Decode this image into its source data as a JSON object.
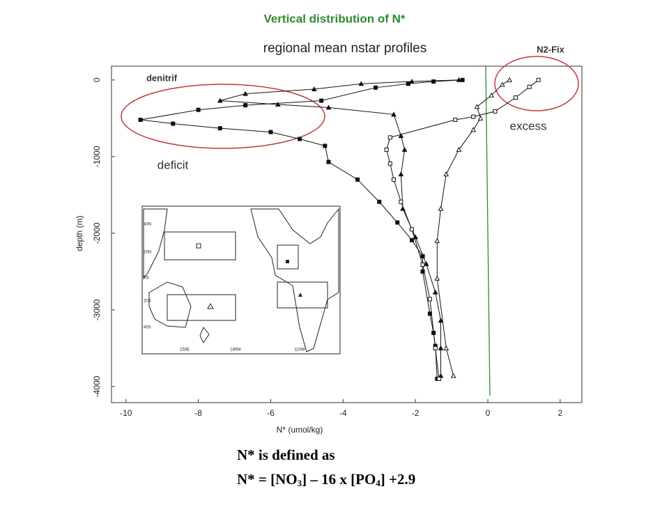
{
  "slide_title": "Vertical distribution of N*",
  "chart_data": {
    "type": "line",
    "title": "regional mean nstar profiles",
    "x_label": "N* (umol/kg)",
    "y_label": "depth (m)",
    "xlim": [
      -10.4,
      2.6
    ],
    "ylim": [
      -4210,
      180
    ],
    "xticks": [
      -10,
      -8,
      -6,
      -4,
      -2,
      0,
      2
    ],
    "yticks": [
      0,
      -1000,
      -2000,
      -3000,
      -4000
    ],
    "reference_line": {
      "value": 0,
      "color": "#2e8b2e"
    },
    "series": [
      {
        "marker": "filled-square",
        "color": "#111111",
        "x": [
          -0.7,
          -1.5,
          -2.2,
          -3.1,
          -4.6,
          -6.7,
          -8.0,
          -9.6,
          -8.7,
          -7.4,
          -6.0,
          -5.2,
          -4.5,
          -4.4,
          -3.6,
          -3.0,
          -2.5,
          -2.1,
          -1.8,
          -1.8,
          -1.6,
          -1.5,
          -1.45,
          -1.4
        ],
        "y": [
          0,
          -20,
          -50,
          -100,
          -270,
          -330,
          -390,
          -520,
          -570,
          -630,
          -680,
          -770,
          -860,
          -1070,
          -1300,
          -1590,
          -1860,
          -2090,
          -2300,
          -2500,
          -3050,
          -3300,
          -3470,
          -3900
        ]
      },
      {
        "marker": "filled-triangle",
        "color": "#111111",
        "x": [
          -0.8,
          -2.1,
          -3.5,
          -4.8,
          -6.7,
          -7.4,
          -5.8,
          -4.4,
          -2.6,
          -2.4,
          -2.3,
          -2.4,
          -2.35,
          -2.0,
          -1.7,
          -1.45,
          -1.3,
          -1.3,
          -1.3
        ],
        "y": [
          0,
          -20,
          -50,
          -120,
          -180,
          -270,
          -320,
          -360,
          -450,
          -730,
          -910,
          -1230,
          -1680,
          -2050,
          -2400,
          -2770,
          -3140,
          -3500,
          -3860
        ]
      },
      {
        "marker": "open-square",
        "color": "#111111",
        "x": [
          1.4,
          1.15,
          0.77,
          0.2,
          -0.4,
          -0.9,
          -2.7,
          -2.8,
          -2.7,
          -2.6,
          -2.4,
          -2.1,
          -1.8,
          -1.6,
          -1.45,
          -1.35
        ],
        "y": [
          0,
          -90,
          -230,
          -410,
          -480,
          -520,
          -750,
          -910,
          -1090,
          -1300,
          -1590,
          -1950,
          -2410,
          -2860,
          -3500,
          -3900
        ]
      },
      {
        "marker": "open-triangle",
        "color": "#111111",
        "x": [
          0.6,
          0.4,
          0.1,
          -0.3,
          -0.2,
          -0.4,
          -0.8,
          -1.15,
          -1.3,
          -1.4,
          -1.4,
          -1.15,
          -0.95
        ],
        "y": [
          0,
          -60,
          -200,
          -350,
          -500,
          -650,
          -910,
          -1230,
          -1680,
          -2100,
          -2590,
          -3500,
          -3860
        ]
      }
    ]
  },
  "annotations": {
    "n2fix": "N2-Fix",
    "denitrif": "denitrif",
    "excess": "excess",
    "deficit": "deficit"
  },
  "inset": {
    "lat_labels": [
      "40N",
      "20N",
      "Eq",
      "20S",
      "40S"
    ],
    "lon_labels": [
      "150E",
      "180W",
      "110W"
    ]
  },
  "formula": {
    "line1": "N* is defined as",
    "line2": [
      "N* = [NO",
      "3",
      "] – 16 x [PO",
      "4",
      "] +2.9"
    ]
  }
}
